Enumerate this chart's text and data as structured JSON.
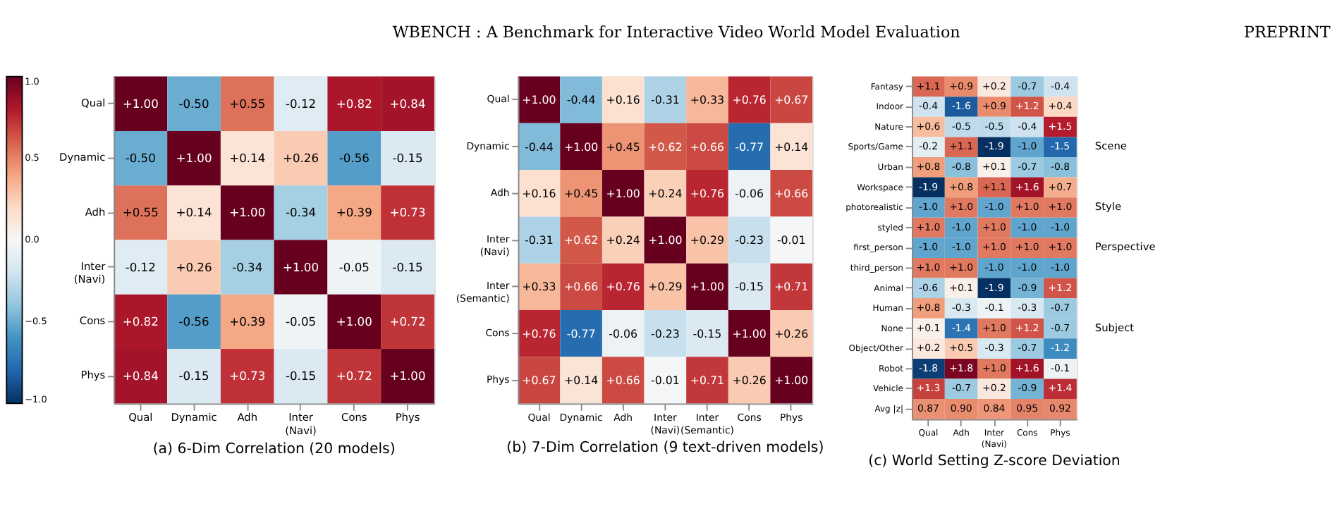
{
  "chart_data": [
    {
      "type": "heatmap",
      "title": "(a) 6-Dim Correlation (20 models)",
      "annotations": [
        "WBENCH : A Benchmark for Interactive Video World Model Evaluation",
        "PREPRINT"
      ],
      "categories": [
        "Qual",
        "Dynamic",
        "Adh",
        "Inter\n(Navi)",
        "Cons",
        "Phys"
      ],
      "y_categories": [
        "Qual",
        "Dynamic",
        "Adh",
        "Inter\n(Navi)",
        "Cons",
        "Phys"
      ],
      "cells": [
        [
          1.0,
          -0.5,
          0.55,
          -0.12,
          0.82,
          0.84
        ],
        [
          -0.5,
          1.0,
          0.14,
          0.26,
          -0.56,
          -0.15
        ],
        [
          0.55,
          0.14,
          1.0,
          -0.34,
          0.39,
          0.73
        ],
        [
          -0.12,
          0.26,
          -0.34,
          1.0,
          -0.05,
          -0.15
        ],
        [
          0.82,
          -0.56,
          0.39,
          -0.05,
          1.0,
          0.72
        ],
        [
          0.84,
          -0.15,
          0.73,
          -0.15,
          0.72,
          1.0
        ]
      ],
      "cell_labels": [
        [
          "+1.00",
          "-0.50",
          "+0.55",
          "-0.12",
          "+0.82",
          "+0.84"
        ],
        [
          "-0.50",
          "+1.00",
          "+0.14",
          "+0.26",
          "-0.56",
          "-0.15"
        ],
        [
          "+0.55",
          "+0.14",
          "+1.00",
          "-0.34",
          "+0.39",
          "+0.73"
        ],
        [
          "-0.12",
          "+0.26",
          "-0.34",
          "+1.00",
          "-0.05",
          "-0.15"
        ],
        [
          "+0.82",
          "-0.56",
          "+0.39",
          "-0.05",
          "+1.00",
          "+0.72"
        ],
        [
          "+0.84",
          "-0.15",
          "+0.73",
          "-0.15",
          "+0.72",
          "+1.00"
        ]
      ],
      "clim": [
        -1,
        1
      ],
      "cticks": [
        {
          "value": 1,
          "label": "1.0"
        },
        {
          "value": 0.5,
          "label": "0.5"
        },
        {
          "value": 0,
          "label": "0.0"
        },
        {
          "value": -0.5,
          "label": "−0.5"
        },
        {
          "value": -1,
          "label": "−1.0"
        }
      ]
    },
    {
      "type": "heatmap",
      "title": "(b) 7-Dim Correlation (9 text-driven models)",
      "categories": [
        "Qual",
        "Dynamic",
        "Adh",
        "Inter\n(Navi)",
        "Inter\n(Semantic)",
        "Cons",
        "Phys"
      ],
      "y_categories": [
        "Qual",
        "Dynamic",
        "Adh",
        "Inter\n(Navi)",
        "Inter\n(Semantic)",
        "Cons",
        "Phys"
      ],
      "cells": [
        [
          1.0,
          -0.44,
          0.16,
          -0.31,
          0.33,
          0.76,
          0.67
        ],
        [
          -0.44,
          1.0,
          0.45,
          0.62,
          0.66,
          -0.77,
          0.14
        ],
        [
          0.16,
          0.45,
          1.0,
          0.24,
          0.76,
          -0.06,
          0.66
        ],
        [
          -0.31,
          0.62,
          0.24,
          1.0,
          0.29,
          -0.23,
          -0.01
        ],
        [
          0.33,
          0.66,
          0.76,
          0.29,
          1.0,
          -0.15,
          0.71
        ],
        [
          0.76,
          -0.77,
          -0.06,
          -0.23,
          -0.15,
          1.0,
          0.26
        ],
        [
          0.67,
          0.14,
          0.66,
          -0.01,
          0.71,
          0.26,
          1.0
        ]
      ],
      "cell_labels": [
        [
          "+1.00",
          "-0.44",
          "+0.16",
          "-0.31",
          "+0.33",
          "+0.76",
          "+0.67"
        ],
        [
          "-0.44",
          "+1.00",
          "+0.45",
          "+0.62",
          "+0.66",
          "-0.77",
          "+0.14"
        ],
        [
          "+0.16",
          "+0.45",
          "+1.00",
          "+0.24",
          "+0.76",
          "-0.06",
          "+0.66"
        ],
        [
          "-0.31",
          "+0.62",
          "+0.24",
          "+1.00",
          "+0.29",
          "-0.23",
          "-0.01"
        ],
        [
          "+0.33",
          "+0.66",
          "+0.76",
          "+0.29",
          "+1.00",
          "-0.15",
          "+0.71"
        ],
        [
          "+0.76",
          "-0.77",
          "-0.06",
          "-0.23",
          "-0.15",
          "+1.00",
          "+0.26"
        ],
        [
          "+0.67",
          "+0.14",
          "+0.66",
          "-0.01",
          "+0.71",
          "+0.26",
          "+1.00"
        ]
      ]
    },
    {
      "type": "heatmap",
      "title": "(c) World Setting Z-score Deviation",
      "categories": [
        "Qual",
        "Adh",
        "Inter\n(Navi)",
        "Cons",
        "Phys"
      ],
      "y_categories": [
        "Fantasy",
        "Indoor",
        "Nature",
        "Sports/Game",
        "Urban",
        "Workspace",
        "photorealistic",
        "styled",
        "first_person",
        "third_person",
        "Animal",
        "Human",
        "None",
        "Object/Other",
        "Robot",
        "Vehicle",
        "Avg |z|"
      ],
      "y2_categories": [
        null,
        null,
        null,
        "Scene",
        null,
        null,
        "Style",
        null,
        "Perspective",
        null,
        null,
        null,
        "Subject",
        null,
        null,
        null,
        null
      ],
      "cells": [
        [
          1.1,
          0.9,
          0.2,
          -0.7,
          -0.4
        ],
        [
          -0.4,
          -1.6,
          0.9,
          1.2,
          0.4
        ],
        [
          0.6,
          -0.5,
          -0.5,
          -0.4,
          1.5
        ],
        [
          -0.2,
          1.1,
          -1.9,
          -1.0,
          -1.5
        ],
        [
          0.8,
          -0.8,
          0.1,
          -0.7,
          -0.8
        ],
        [
          -1.9,
          0.8,
          1.1,
          1.6,
          0.7
        ],
        [
          -1.0,
          1.0,
          -1.0,
          1.0,
          1.0
        ],
        [
          1.0,
          -1.0,
          1.0,
          -1.0,
          -1.0
        ],
        [
          -1.0,
          -1.0,
          1.0,
          1.0,
          1.0
        ],
        [
          1.0,
          1.0,
          -1.0,
          -1.0,
          -1.0
        ],
        [
          -0.6,
          0.1,
          -1.9,
          -0.9,
          1.2
        ],
        [
          0.8,
          -0.3,
          -0.1,
          -0.3,
          -0.7
        ],
        [
          0.1,
          -1.4,
          1.0,
          1.2,
          -0.7
        ],
        [
          0.2,
          0.5,
          -0.3,
          -0.7,
          -1.2
        ],
        [
          -1.8,
          1.8,
          1.0,
          1.6,
          -0.1
        ],
        [
          1.3,
          -0.7,
          0.2,
          -0.9,
          1.4
        ],
        [
          0.87,
          0.9,
          0.84,
          0.95,
          0.92
        ]
      ],
      "cell_labels": [
        [
          "+1.1",
          "+0.9",
          "+0.2",
          "-0.7",
          "-0.4"
        ],
        [
          "-0.4",
          "-1.6",
          "+0.9",
          "+1.2",
          "+0.4"
        ],
        [
          "+0.6",
          "-0.5",
          "-0.5",
          "-0.4",
          "+1.5"
        ],
        [
          "-0.2",
          "+1.1",
          "-1.9",
          "-1.0",
          "-1.5"
        ],
        [
          "+0.8",
          "-0.8",
          "+0.1",
          "-0.7",
          "-0.8"
        ],
        [
          "-1.9",
          "+0.8",
          "+1.1",
          "+1.6",
          "+0.7"
        ],
        [
          "-1.0",
          "+1.0",
          "-1.0",
          "+1.0",
          "+1.0"
        ],
        [
          "+1.0",
          "-1.0",
          "+1.0",
          "-1.0",
          "-1.0"
        ],
        [
          "-1.0",
          "-1.0",
          "+1.0",
          "+1.0",
          "+1.0"
        ],
        [
          "+1.0",
          "+1.0",
          "-1.0",
          "-1.0",
          "-1.0"
        ],
        [
          "-0.6",
          "+0.1",
          "-1.9",
          "-0.9",
          "+1.2"
        ],
        [
          "+0.8",
          "-0.3",
          "-0.1",
          "-0.3",
          "-0.7"
        ],
        [
          "+0.1",
          "-1.4",
          "+1.0",
          "+1.2",
          "-0.7"
        ],
        [
          "+0.2",
          "+0.5",
          "-0.3",
          "-0.7",
          "-1.2"
        ],
        [
          "-1.8",
          "+1.8",
          "+1.0",
          "+1.6",
          "-0.1"
        ],
        [
          "+1.3",
          "-0.7",
          "+0.2",
          "-0.9",
          "+1.4"
        ],
        [
          "0.87",
          "0.90",
          "0.84",
          "0.95",
          "0.92"
        ]
      ]
    }
  ]
}
